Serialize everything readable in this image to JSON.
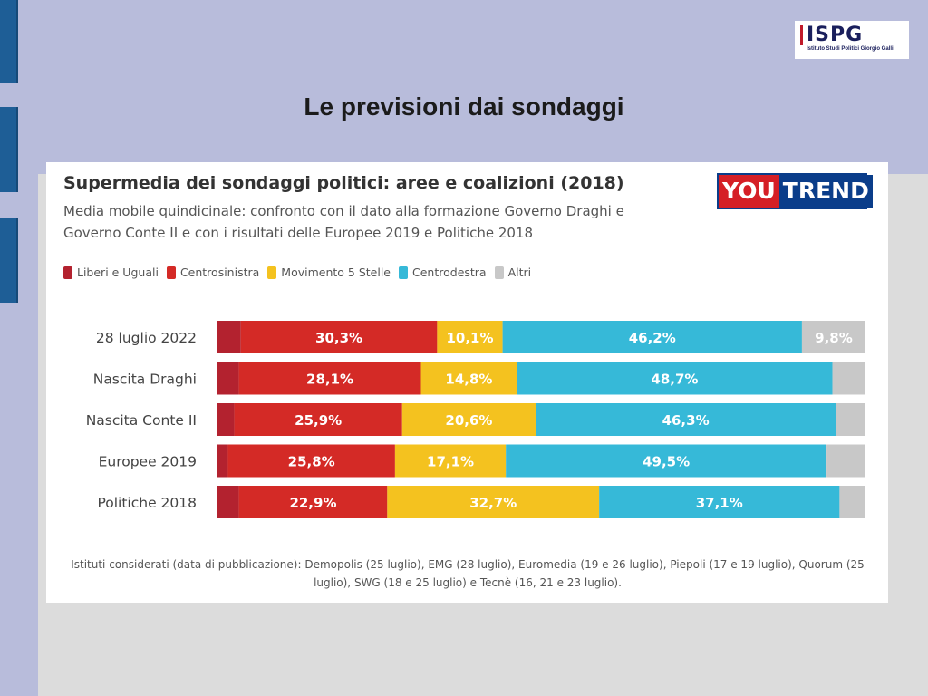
{
  "slide": {
    "title": "Le previsioni dai sondaggi",
    "logo_text": "ISPG",
    "logo_sub": "Istituto Studi Politici Giorgio Galli"
  },
  "brand": {
    "you": "YOU",
    "trend": "TREND"
  },
  "chart_data": {
    "type": "bar",
    "orientation": "horizontal",
    "stacked": true,
    "title": "Supermedia dei sondaggi politici: aree e coalizioni (2018)",
    "subtitle": "Media mobile quindicinale: confronto con il dato alla formazione Governo Draghi e Governo Conte II e con i risultati delle Europee 2019 e Politiche 2018",
    "categories": [
      "28 luglio 2022",
      "Nascita Draghi",
      "Nascita Conte II",
      "Europee 2019",
      "Politiche 2018"
    ],
    "series": [
      {
        "name": "Liberi e Uguali",
        "color": "#b3222f",
        "values": [
          3.6,
          3.3,
          2.6,
          1.6,
          3.3
        ],
        "labels": [
          "",
          "",
          "",
          "",
          ""
        ]
      },
      {
        "name": "Centrosinistra",
        "color": "#d42a26",
        "values": [
          30.3,
          28.1,
          25.9,
          25.8,
          22.9
        ],
        "labels": [
          "30,3%",
          "28,1%",
          "25,9%",
          "25,8%",
          "22,9%"
        ]
      },
      {
        "name": "Movimento 5 Stelle",
        "color": "#f4c21f",
        "values": [
          10.1,
          14.8,
          20.6,
          17.1,
          32.7
        ],
        "labels": [
          "10,1%",
          "14,8%",
          "20,6%",
          "17,1%",
          "32,7%"
        ]
      },
      {
        "name": "Centrodestra",
        "color": "#36b9d8",
        "values": [
          46.2,
          48.7,
          46.3,
          49.5,
          37.1
        ],
        "labels": [
          "46,2%",
          "48,7%",
          "46,3%",
          "49,5%",
          "37,1%"
        ]
      },
      {
        "name": "Altri",
        "color": "#c8c8c8",
        "values": [
          9.8,
          5.1,
          4.6,
          6.0,
          4.0
        ],
        "labels": [
          "9,8%",
          "",
          "",
          "",
          ""
        ]
      }
    ],
    "xlim": [
      0,
      100
    ],
    "legend_position": "top-left"
  },
  "footnote": "Istituti considerati (data di pubblicazione): Demopolis (25 luglio), EMG (28 luglio), Euromedia (19 e 26 luglio), Piepoli (17 e 19 luglio), Quorum (25 luglio), SWG (18 e 25 luglio) e Tecnè (16, 21 e 23 luglio)."
}
